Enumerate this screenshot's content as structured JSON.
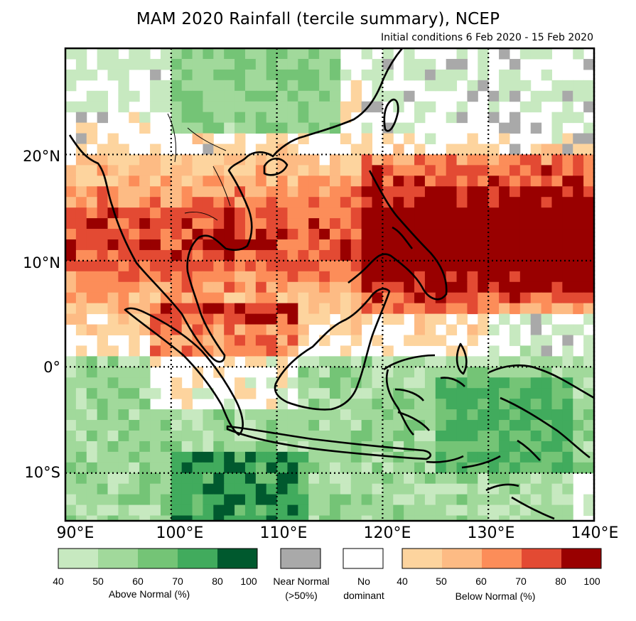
{
  "title": "MAM 2020 Rainfall (tercile summary), NCEP",
  "subtitle": "Initial conditions 6 Feb 2020 - 15 Feb 2020",
  "map": {
    "region": "Southeast Asia",
    "lon_range": [
      90,
      140
    ],
    "lat_range": [
      -14.5,
      30
    ],
    "y_labels": [
      "20°N",
      "10°N",
      "0°",
      "10°S"
    ],
    "x_labels": [
      "90°E",
      "100°E",
      "110°E",
      "120°E",
      "130°E",
      "140°E"
    ],
    "grid_lons": [
      100,
      110,
      120,
      130,
      140
    ],
    "grid_lats": [
      20,
      10,
      0,
      -10
    ]
  },
  "legend": {
    "above": {
      "caption": "Above Normal (%)",
      "ticks": [
        "40",
        "50",
        "60",
        "70",
        "80",
        "100"
      ],
      "colors": [
        "#c7e9c0",
        "#a1d99b",
        "#74c476",
        "#41ab5d",
        "#00592e"
      ]
    },
    "near_normal": {
      "caption_line1": "Near Normal",
      "caption_line2": "(>50%)",
      "color": "#a9a9a9"
    },
    "no_dominant": {
      "caption_line1": "No",
      "caption_line2": "dominant",
      "color": "#ffffff"
    },
    "below": {
      "caption": "Below Normal (%)",
      "ticks": [
        "40",
        "50",
        "60",
        "70",
        "80",
        "100"
      ],
      "colors": [
        "#fdd49e",
        "#fdbb84",
        "#fc8d59",
        "#e34a33",
        "#990000"
      ]
    }
  }
}
